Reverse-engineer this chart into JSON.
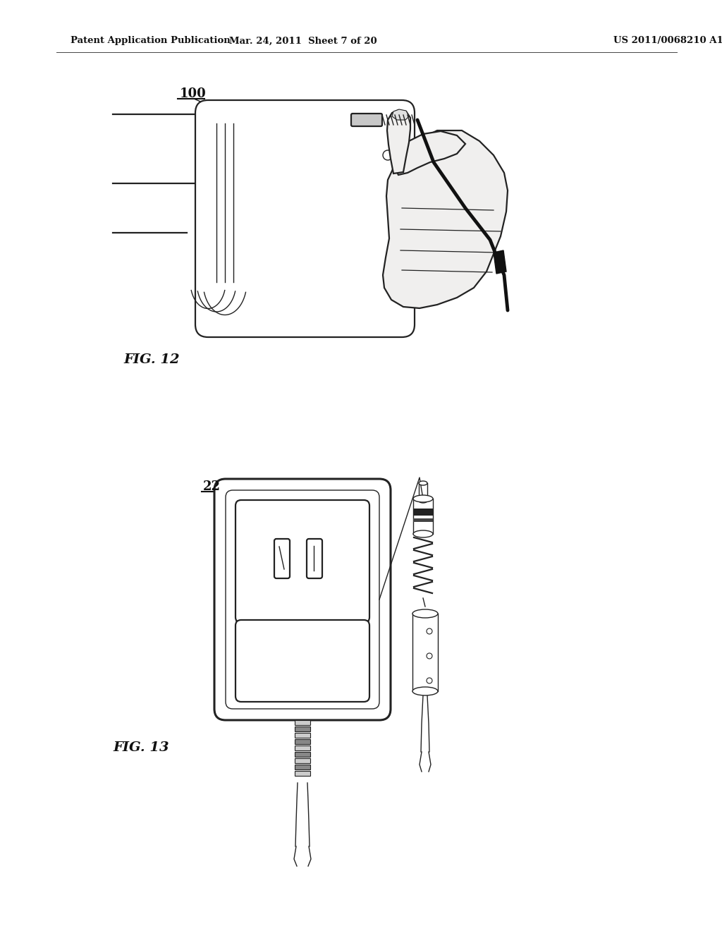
{
  "background_color": "#ffffff",
  "header_left": "Patent Application Publication",
  "header_center": "Mar. 24, 2011  Sheet 7 of 20",
  "header_right": "US 2011/0068210 A1",
  "fig12_label": "FIG. 12",
  "fig12_ref": "100",
  "fig13_label": "FIG. 13",
  "fig13_ref": "22",
  "line_color": "#222222"
}
